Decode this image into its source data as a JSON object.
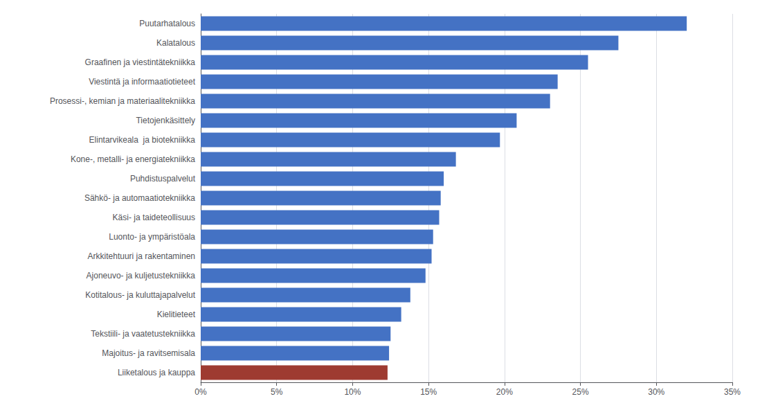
{
  "chart_data": {
    "type": "bar",
    "orientation": "horizontal",
    "categories": [
      "Puutarhatalous",
      "Kalatalous",
      "Graafinen ja viestintätekniikka",
      "Viestintä ja informaatiotieteet",
      "Prosessi-, kemian ja materiaalitekniikka",
      "Tietojenkäsittely",
      "Elintarvikeala  ja biotekniikka",
      "Kone-, metalli- ja energiatekniikka",
      "Puhdistuspalvelut",
      "Sähkö- ja automaatiotekniikka",
      "Käsi- ja taideteollisuus",
      "Luonto- ja ympäristöala",
      "Arkkitehtuuri ja rakentaminen",
      "Ajoneuvo- ja kuljetustekniikka",
      "Kotitalous- ja kuluttajapalvelut",
      "Kielitieteet",
      "Tekstiili- ja vaatetustekniikka",
      "Majoitus- ja ravitsemisala",
      "Liiketalous ja kauppa"
    ],
    "values": [
      32.0,
      27.5,
      25.5,
      23.5,
      23.0,
      20.8,
      19.7,
      16.8,
      16.0,
      15.8,
      15.7,
      15.3,
      15.2,
      14.8,
      13.8,
      13.2,
      12.5,
      12.4,
      12.3
    ],
    "colors": [
      "#4472C4",
      "#4472C4",
      "#4472C4",
      "#4472C4",
      "#4472C4",
      "#4472C4",
      "#4472C4",
      "#4472C4",
      "#4472C4",
      "#4472C4",
      "#4472C4",
      "#4472C4",
      "#4472C4",
      "#4472C4",
      "#4472C4",
      "#4472C4",
      "#4472C4",
      "#4472C4",
      "#9E3B31"
    ],
    "xlim": [
      0,
      35
    ],
    "xticks": [
      {
        "value": 0,
        "label": "0%"
      },
      {
        "value": 5,
        "label": "5%"
      },
      {
        "value": 10,
        "label": "10%"
      },
      {
        "value": 15,
        "label": "15%"
      },
      {
        "value": 20,
        "label": "20%"
      },
      {
        "value": 25,
        "label": "25%"
      },
      {
        "value": 30,
        "label": "30%"
      },
      {
        "value": 35,
        "label": "35%"
      }
    ],
    "grid": true
  }
}
